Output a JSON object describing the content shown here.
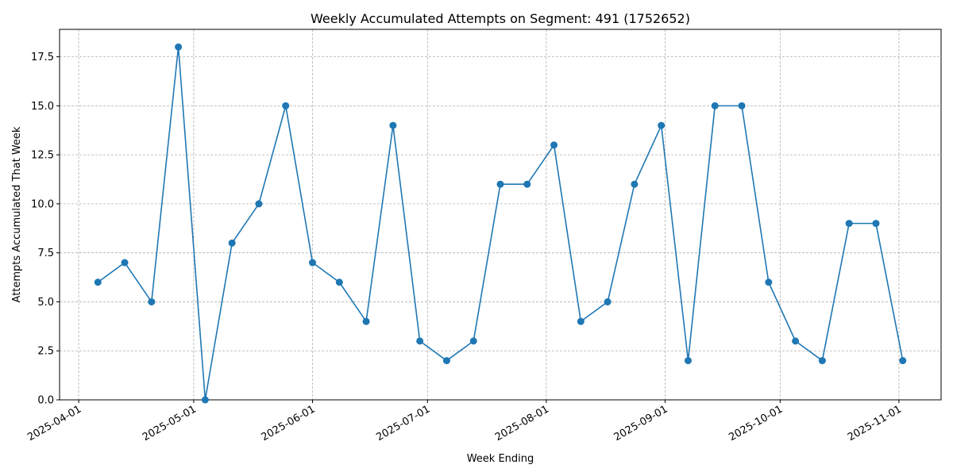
{
  "chart_data": {
    "type": "line",
    "title": "Weekly Accumulated Attempts on Segment: 491 (1752652)",
    "xlabel": "Week Ending",
    "ylabel": "Attempts Accumulated That Week",
    "x_ticks": [
      "2025-04-01",
      "2025-05-01",
      "2025-06-01",
      "2025-07-01",
      "2025-08-01",
      "2025-09-01",
      "2025-10-01",
      "2025-11-01"
    ],
    "y_ticks": [
      "0.0",
      "2.5",
      "5.0",
      "7.5",
      "10.0",
      "12.5",
      "15.0",
      "17.5"
    ],
    "ylim": [
      0,
      18.9
    ],
    "xlim": [
      "2025-03-27",
      "2025-11-12"
    ],
    "grid": true,
    "color": "#1f77b4",
    "series": [
      {
        "x": [
          "2025-04-06",
          "2025-04-13",
          "2025-04-20",
          "2025-04-27",
          "2025-05-04",
          "2025-05-11",
          "2025-05-18",
          "2025-05-25",
          "2025-06-01",
          "2025-06-08",
          "2025-06-15",
          "2025-06-22",
          "2025-06-29",
          "2025-07-06",
          "2025-07-13",
          "2025-07-20",
          "2025-07-27",
          "2025-08-03",
          "2025-08-10",
          "2025-08-17",
          "2025-08-24",
          "2025-08-31",
          "2025-09-07",
          "2025-09-14",
          "2025-09-21",
          "2025-09-28",
          "2025-10-05",
          "2025-10-12",
          "2025-10-19",
          "2025-10-26",
          "2025-11-02"
        ],
        "values": [
          6,
          7,
          5,
          18,
          0,
          8,
          10,
          15,
          7,
          6,
          4,
          14,
          3,
          2,
          3,
          11,
          11,
          13,
          4,
          5,
          11,
          14,
          2,
          15,
          15,
          6,
          3,
          2,
          9,
          9,
          2
        ]
      }
    ]
  }
}
